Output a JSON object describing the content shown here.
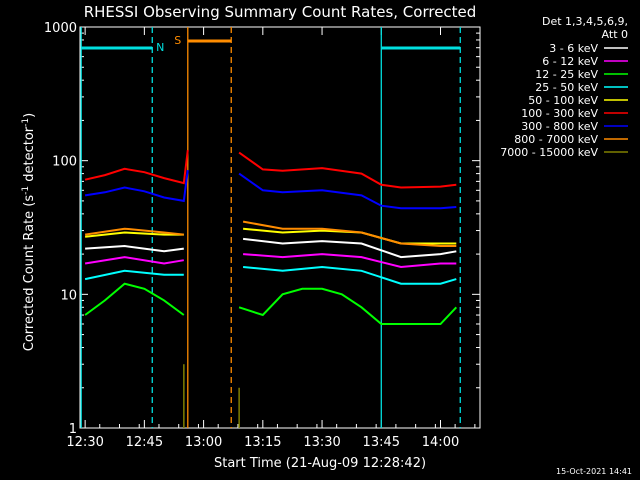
{
  "chart_data": {
    "type": "line",
    "title": "RHESSI Observing Summary Count Rates, Corrected",
    "xlabel": "Start Time (21-Aug-09 12:28:42)",
    "ylabel": "Corrected Count Rate (s⁻¹ detector⁻¹)",
    "ylabel_main": "Corrected Count Rate (s",
    "ylabel_sup1": "-1",
    "ylabel_mid": " detector",
    "ylabel_sup2": "-1",
    "ylabel_end": ")",
    "yscale": "log",
    "ylim": [
      1,
      1000
    ],
    "xlim_minutes": [
      "12:28:42",
      "14:10:00"
    ],
    "x_ticks": [
      "12:30",
      "12:45",
      "13:00",
      "13:15",
      "13:30",
      "13:45",
      "14:00"
    ],
    "y_ticks": [
      "1",
      "10",
      "100",
      "1000"
    ],
    "legend_header": [
      "Det 1,3,4,5,6,9,",
      "Att 0"
    ],
    "timestamp": "15-Oct-2021 14:41",
    "flags": [
      {
        "label": "N",
        "color": "#00e0e0",
        "spans": [
          [
            "12:29",
            "12:47"
          ],
          [
            "13:45",
            "14:05"
          ]
        ]
      },
      {
        "label": "S",
        "color": "#ff8c00",
        "spans": [
          [
            "12:56",
            "13:07"
          ]
        ]
      }
    ],
    "gap": [
      "12:56",
      "13:09"
    ],
    "series": [
      {
        "name": "3 - 6 keV",
        "color": "#ffffff",
        "x": [
          "12:30",
          "12:40",
          "12:50",
          "12:55",
          "13:10",
          "13:20",
          "13:30",
          "13:40",
          "13:50",
          "14:00",
          "14:04"
        ],
        "values": [
          22,
          23,
          21,
          22,
          26,
          24,
          25,
          24,
          19,
          20,
          21
        ]
      },
      {
        "name": "6 - 12 keV",
        "color": "#ff00ff",
        "x": [
          "12:30",
          "12:40",
          "12:50",
          "12:55",
          "13:10",
          "13:20",
          "13:30",
          "13:40",
          "13:50",
          "14:00",
          "14:04"
        ],
        "values": [
          17,
          19,
          17,
          18,
          20,
          19,
          20,
          19,
          16,
          17,
          17
        ]
      },
      {
        "name": "12 - 25 keV",
        "color": "#00ff00",
        "x": [
          "12:30",
          "12:35",
          "12:40",
          "12:45",
          "12:50",
          "12:55",
          "13:09",
          "13:15",
          "13:20",
          "13:25",
          "13:30",
          "13:35",
          "13:40",
          "13:45",
          "13:50",
          "14:00",
          "14:04"
        ],
        "values": [
          7,
          9,
          12,
          11,
          9,
          7,
          8,
          7,
          10,
          11,
          11,
          10,
          8,
          6,
          6,
          6,
          8
        ]
      },
      {
        "name": "25 - 50 keV",
        "color": "#00ffff",
        "x": [
          "12:30",
          "12:40",
          "12:50",
          "12:55",
          "13:10",
          "13:20",
          "13:30",
          "13:40",
          "13:50",
          "14:00",
          "14:04"
        ],
        "values": [
          13,
          15,
          14,
          14,
          16,
          15,
          16,
          15,
          12,
          12,
          13
        ]
      },
      {
        "name": "50 - 100 keV",
        "color": "#ffff00",
        "x": [
          "12:30",
          "12:40",
          "12:50",
          "12:55",
          "13:10",
          "13:20",
          "13:30",
          "13:40",
          "13:50",
          "14:00",
          "14:04"
        ],
        "values": [
          27,
          29,
          28,
          28,
          31,
          29,
          30,
          29,
          24,
          24,
          24
        ]
      },
      {
        "name": "100 - 300 keV",
        "color": "#ff0000",
        "x": [
          "12:30",
          "12:35",
          "12:40",
          "12:45",
          "12:50",
          "12:55",
          "12:56",
          "13:09",
          "13:15",
          "13:20",
          "13:30",
          "13:40",
          "13:45",
          "13:50",
          "14:00",
          "14:04"
        ],
        "values": [
          72,
          78,
          87,
          82,
          74,
          68,
          120,
          115,
          86,
          84,
          88,
          80,
          66,
          63,
          64,
          66
        ]
      },
      {
        "name": "300 - 800 keV",
        "color": "#0000ff",
        "x": [
          "12:30",
          "12:35",
          "12:40",
          "12:45",
          "12:50",
          "12:55",
          "12:56",
          "13:09",
          "13:15",
          "13:20",
          "13:30",
          "13:40",
          "13:45",
          "13:50",
          "14:00",
          "14:04"
        ],
        "values": [
          55,
          58,
          63,
          59,
          53,
          50,
          85,
          80,
          60,
          58,
          60,
          55,
          46,
          44,
          44,
          45
        ]
      },
      {
        "name": "800 - 7000 keV",
        "color": "#ff8c00",
        "x": [
          "12:30",
          "12:40",
          "12:50",
          "12:55",
          "13:10",
          "13:20",
          "13:30",
          "13:40",
          "13:50",
          "14:00",
          "14:04"
        ],
        "values": [
          28,
          31,
          29,
          28,
          35,
          31,
          31,
          29,
          24,
          23,
          23
        ]
      },
      {
        "name": "7000 - 15000 keV",
        "color": "#808000",
        "x": [
          "12:55",
          "13:09"
        ],
        "values": [
          3,
          2
        ]
      }
    ]
  }
}
